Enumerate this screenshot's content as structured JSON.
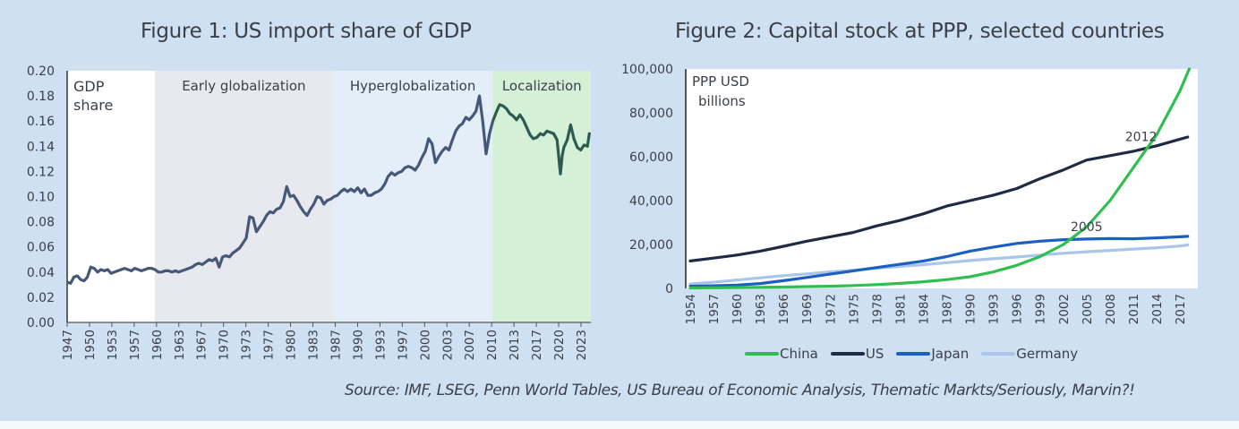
{
  "page": {
    "background": "#cfe0f3",
    "source": "Source: IMF, LSEG, Penn World Tables, US Bureau of Economic Analysis, Thematic Markts/Seriously, Marvin?!"
  },
  "chart_data": [
    {
      "type": "line",
      "title": "Figure 1: US import share of GDP",
      "xlabel": "",
      "ylabel": "GDP share",
      "y_annotation": [
        "GDP",
        "share"
      ],
      "xlim": [
        1947,
        2024.5
      ],
      "ylim": [
        0,
        0.2
      ],
      "yticks": [
        0.0,
        0.02,
        0.04,
        0.06,
        0.08,
        0.1,
        0.12,
        0.14,
        0.16,
        0.18,
        0.2
      ],
      "ytick_labels": [
        "0.00",
        "0.02",
        "0.04",
        "0.06",
        "0.08",
        "0.10",
        "0.12",
        "0.14",
        "0.16",
        "0.18",
        "0.20"
      ],
      "xtick_labels": [
        "1947",
        "1950",
        "1953",
        "1957",
        "1960",
        "1963",
        "1967",
        "1970",
        "1973",
        "1977",
        "1980",
        "1983",
        "1987",
        "1990",
        "1993",
        "1997",
        "2000",
        "2003",
        "2007",
        "2010",
        "2013",
        "2017",
        "2020",
        "2023"
      ],
      "regions": [
        {
          "label": "",
          "start": 1947,
          "end": 1960,
          "color": "#ffffff"
        },
        {
          "label": "Early globalization",
          "start": 1960,
          "end": 1986.3,
          "color": "#e8e9ef"
        },
        {
          "label": "Hyperglobalization",
          "start": 1986.3,
          "end": 2010,
          "color": "#e3eef9"
        },
        {
          "label": "Localization",
          "start": 2010,
          "end": 2024.5,
          "color": "#d4f0d6"
        }
      ],
      "series": [
        {
          "name": "US import share of GDP",
          "color": "#46587a",
          "color_localization": "#2e5a50",
          "x": [
            1947,
            1947.5,
            1948,
            1948.5,
            1949,
            1949.5,
            1950,
            1950.5,
            1951,
            1951.5,
            1952,
            1952.5,
            1953,
            1953.5,
            1954,
            1954.5,
            1955,
            1955.5,
            1956,
            1956.5,
            1957,
            1957.5,
            1958,
            1958.5,
            1959,
            1959.5,
            1960,
            1960.5,
            1961,
            1961.5,
            1962,
            1962.5,
            1963,
            1963.5,
            1964,
            1964.5,
            1965,
            1965.5,
            1966,
            1966.5,
            1967,
            1967.5,
            1968,
            1968.5,
            1969,
            1969.5,
            1970,
            1970.5,
            1971,
            1971.5,
            1972,
            1972.5,
            1973,
            1973.5,
            1974,
            1974.5,
            1975,
            1975.5,
            1976,
            1976.5,
            1977,
            1977.5,
            1978,
            1978.5,
            1979,
            1979.5,
            1980,
            1980.5,
            1981,
            1981.5,
            1982,
            1982.5,
            1983,
            1983.5,
            1984,
            1984.5,
            1985,
            1985.5,
            1986,
            1986.5,
            1987,
            1987.5,
            1988,
            1988.5,
            1989,
            1989.5,
            1990,
            1990.5,
            1991,
            1991.5,
            1992,
            1992.5,
            1993,
            1993.5,
            1994,
            1994.5,
            1995,
            1995.5,
            1996,
            1996.5,
            1997,
            1997.5,
            1998,
            1998.5,
            1999,
            1999.5,
            2000,
            2000.5,
            2001,
            2001.5,
            2002,
            2002.5,
            2003,
            2003.5,
            2004,
            2004.5,
            2005,
            2005.5,
            2006,
            2006.5,
            2007,
            2007.5,
            2008,
            2008.5,
            2009,
            2009.5,
            2010,
            2010.5,
            2011,
            2011.5,
            2012,
            2012.5,
            2013,
            2013.5,
            2014,
            2014.5,
            2015,
            2015.5,
            2016,
            2016.5,
            2017,
            2017.5,
            2018,
            2018.5,
            2019,
            2019.5,
            2020,
            2020.25,
            2020.5,
            2021,
            2021.5,
            2022,
            2022.5,
            2023,
            2023.5,
            2024,
            2024.3
          ],
          "y": [
            0.032,
            0.031,
            0.036,
            0.037,
            0.034,
            0.033,
            0.036,
            0.044,
            0.043,
            0.04,
            0.042,
            0.041,
            0.042,
            0.039,
            0.04,
            0.041,
            0.042,
            0.043,
            0.042,
            0.041,
            0.043,
            0.042,
            0.041,
            0.042,
            0.043,
            0.043,
            0.042,
            0.04,
            0.04,
            0.041,
            0.041,
            0.04,
            0.041,
            0.04,
            0.041,
            0.042,
            0.043,
            0.044,
            0.046,
            0.047,
            0.046,
            0.048,
            0.05,
            0.049,
            0.051,
            0.044,
            0.052,
            0.053,
            0.052,
            0.055,
            0.057,
            0.059,
            0.063,
            0.067,
            0.084,
            0.083,
            0.072,
            0.076,
            0.08,
            0.085,
            0.088,
            0.087,
            0.09,
            0.091,
            0.096,
            0.108,
            0.1,
            0.101,
            0.097,
            0.092,
            0.088,
            0.085,
            0.09,
            0.094,
            0.1,
            0.099,
            0.094,
            0.097,
            0.098,
            0.1,
            0.101,
            0.104,
            0.106,
            0.104,
            0.106,
            0.104,
            0.107,
            0.103,
            0.106,
            0.101,
            0.101,
            0.103,
            0.104,
            0.106,
            0.11,
            0.116,
            0.119,
            0.117,
            0.119,
            0.12,
            0.123,
            0.124,
            0.123,
            0.121,
            0.125,
            0.131,
            0.136,
            0.146,
            0.142,
            0.127,
            0.132,
            0.136,
            0.139,
            0.137,
            0.145,
            0.152,
            0.156,
            0.158,
            0.163,
            0.161,
            0.164,
            0.168,
            0.18,
            0.16,
            0.134,
            0.15,
            0.16,
            0.167,
            0.173,
            0.172,
            0.17,
            0.166,
            0.164,
            0.161,
            0.165,
            0.161,
            0.155,
            0.149,
            0.146,
            0.147,
            0.15,
            0.149,
            0.152,
            0.151,
            0.15,
            0.145,
            0.118,
            0.132,
            0.139,
            0.145,
            0.157,
            0.146,
            0.139,
            0.137,
            0.141,
            0.14,
            0.151
          ]
        }
      ]
    },
    {
      "type": "line",
      "title": "Figure 2: Capital stock at PPP, selected countries",
      "xlabel": "",
      "ylabel": "PPP USD billions",
      "y_annotation": [
        "PPP USD",
        "billions"
      ],
      "xlim": [
        1953.5,
        2019.5
      ],
      "ylim": [
        0,
        100000
      ],
      "yticks": [
        0,
        20000,
        40000,
        60000,
        80000,
        100000
      ],
      "ytick_labels": [
        "0",
        "20,000",
        "40,000",
        "60,000",
        "80,000",
        "100,000"
      ],
      "xtick_labels": [
        "1954",
        "1957",
        "1960",
        "1963",
        "1966",
        "1969",
        "1972",
        "1975",
        "1978",
        "1981",
        "1984",
        "1987",
        "1990",
        "1993",
        "1996",
        "1999",
        "2002",
        "2005",
        "2008",
        "2011",
        "2014",
        "2017"
      ],
      "annotations": [
        {
          "text": "2005",
          "x": 2005,
          "y": 22000
        },
        {
          "text": "2012",
          "x": 2012,
          "y": 63000
        }
      ],
      "legend_position": "bottom",
      "series": [
        {
          "name": "China",
          "color": "#2fbf4f",
          "x": [
            1954,
            1957,
            1960,
            1963,
            1966,
            1969,
            1972,
            1975,
            1978,
            1981,
            1984,
            1987,
            1990,
            1993,
            1996,
            1999,
            2002,
            2005,
            2008,
            2011,
            2014,
            2017,
            2018.2
          ],
          "y": [
            200,
            300,
            400,
            500,
            600,
            800,
            1000,
            1300,
            1700,
            2300,
            3000,
            4000,
            5300,
            7500,
            10500,
            14500,
            20000,
            28000,
            40000,
            55000,
            70000,
            90000,
            100000
          ]
        },
        {
          "name": "US",
          "color": "#1f2b45",
          "x": [
            1954,
            1957,
            1960,
            1963,
            1966,
            1969,
            1972,
            1975,
            1978,
            1981,
            1984,
            1987,
            1990,
            1993,
            1996,
            1999,
            2002,
            2005,
            2008,
            2011,
            2014,
            2017,
            2018
          ],
          "y": [
            12500,
            13800,
            15200,
            17000,
            19200,
            21500,
            23500,
            25500,
            28500,
            31000,
            34000,
            37500,
            40000,
            42500,
            45500,
            50000,
            54000,
            58500,
            60500,
            62500,
            65000,
            68000,
            69000
          ]
        },
        {
          "name": "Japan",
          "color": "#1b5fc1",
          "x": [
            1954,
            1957,
            1960,
            1963,
            1966,
            1969,
            1972,
            1975,
            1978,
            1981,
            1984,
            1987,
            1990,
            1993,
            1996,
            1999,
            2002,
            2005,
            2008,
            2011,
            2014,
            2017,
            2018
          ],
          "y": [
            1000,
            1200,
            1500,
            2200,
            3500,
            5000,
            6500,
            8000,
            9500,
            11000,
            12500,
            14500,
            17000,
            18800,
            20500,
            21500,
            22200,
            22500,
            22700,
            22600,
            23000,
            23500,
            23700
          ]
        },
        {
          "name": "Germany",
          "color": "#a9c6ea",
          "x": [
            1954,
            1957,
            1960,
            1963,
            1966,
            1969,
            1972,
            1975,
            1978,
            1981,
            1984,
            1987,
            1990,
            1993,
            1996,
            1999,
            2002,
            2005,
            2008,
            2011,
            2014,
            2017,
            2018
          ],
          "y": [
            2000,
            2800,
            3800,
            4800,
            5800,
            6600,
            7500,
            8300,
            9200,
            10000,
            10800,
            11700,
            12700,
            13500,
            14300,
            15200,
            16000,
            16700,
            17300,
            17900,
            18500,
            19300,
            19800
          ]
        }
      ]
    }
  ]
}
